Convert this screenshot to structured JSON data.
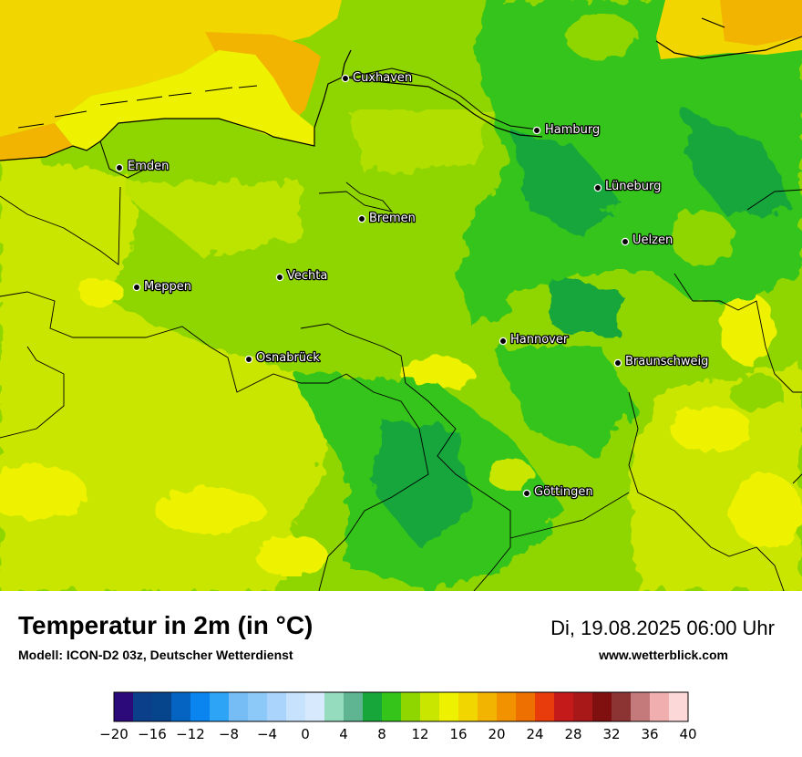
{
  "map": {
    "cities": [
      {
        "name": "Cuxhaven"
      },
      {
        "name": "Hamburg"
      },
      {
        "name": "Emden"
      },
      {
        "name": "Lüneburg"
      },
      {
        "name": "Bremen"
      },
      {
        "name": "Uelzen"
      },
      {
        "name": "Vechta"
      },
      {
        "name": "Meppen"
      },
      {
        "name": "Hannover"
      },
      {
        "name": "Osnabrück"
      },
      {
        "name": "Braunschweig"
      },
      {
        "name": "Göttingen"
      }
    ]
  },
  "header": {
    "title": "Temperatur in 2m (in °C)",
    "model": "Modell: ICON-D2 03z, Deutscher Wetterdienst",
    "datetime": "Di, 19.08.2025 06:00 Uhr",
    "website": "www.wetterblick.com"
  },
  "legend": {
    "ticks": [
      "−20",
      "−16",
      "−12",
      "−8",
      "−4",
      "0",
      "4",
      "8",
      "12",
      "16",
      "20",
      "24",
      "28",
      "32",
      "36",
      "40"
    ],
    "colors": [
      "#2c0a7a",
      "#0b3f8a",
      "#06448c",
      "#0563c1",
      "#0a85f0",
      "#2ea4f7",
      "#77bdf5",
      "#8cc8f8",
      "#aad4fb",
      "#c6e2fc",
      "#d6e9fd",
      "#94dcbd",
      "#5fb491",
      "#17a63a",
      "#34c41a",
      "#8fd600",
      "#c8e600",
      "#eef200",
      "#f2d600",
      "#f2b400",
      "#f29200",
      "#ee7000",
      "#e83c0c",
      "#c41a1a",
      "#a81818",
      "#801010",
      "#8c3434",
      "#c47a7a",
      "#f0aeae",
      "#fcd8d8"
    ]
  }
}
